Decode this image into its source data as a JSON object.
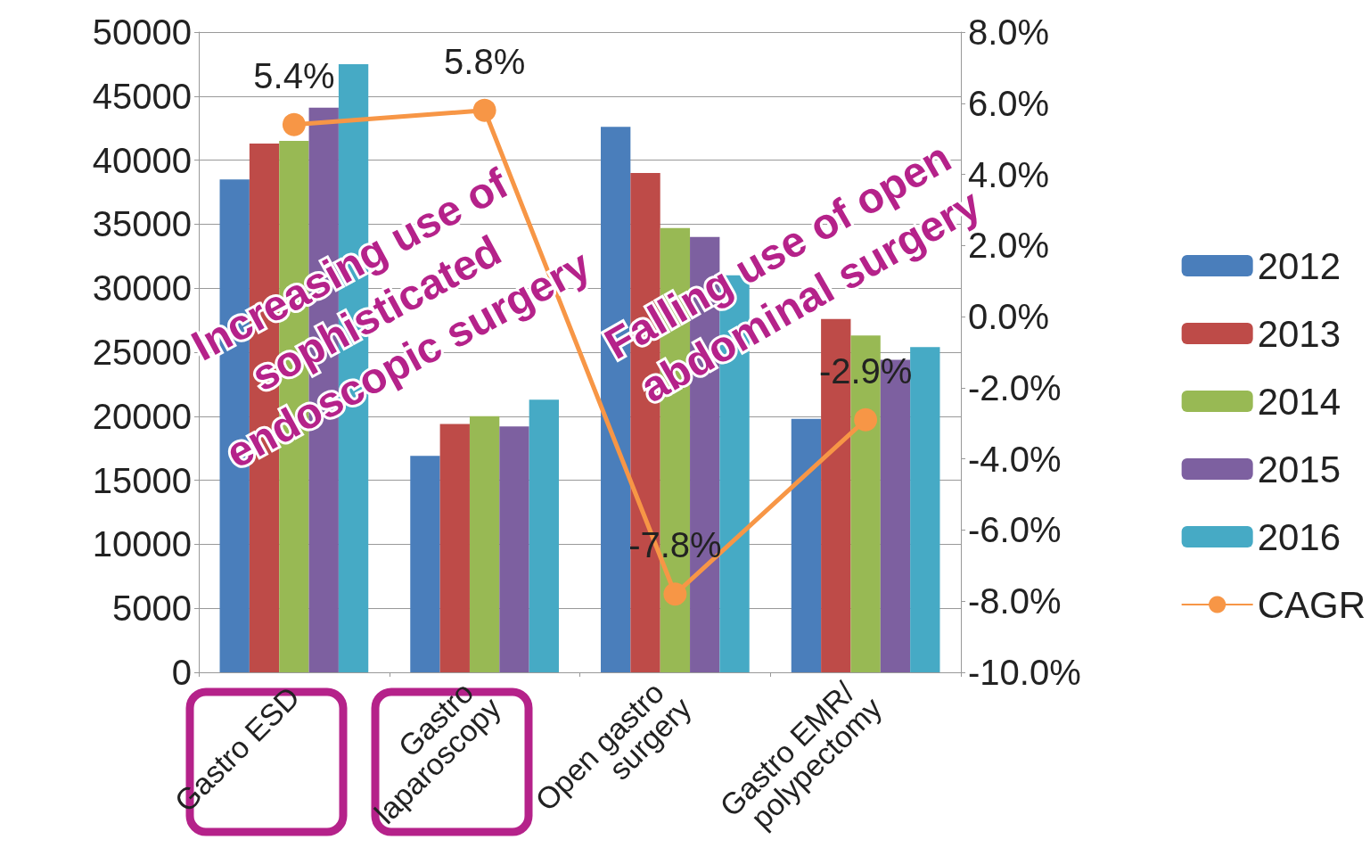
{
  "chart_data": {
    "type": "bar",
    "categories": [
      "Gastro ESD",
      "Gastro laparoscopy",
      "Open gastro surgery",
      "Gastro EMR/ polypectomy"
    ],
    "series": [
      {
        "name": "2012",
        "color": "#4a7ebb",
        "values": [
          38500,
          16900,
          42600,
          19800
        ]
      },
      {
        "name": "2013",
        "color": "#be4b48",
        "values": [
          41300,
          19400,
          39000,
          27600
        ]
      },
      {
        "name": "2014",
        "color": "#98b954",
        "values": [
          41500,
          20000,
          34700,
          26300
        ]
      },
      {
        "name": "2015",
        "color": "#7d60a0",
        "values": [
          44100,
          19200,
          34000,
          24400
        ]
      },
      {
        "name": "2016",
        "color": "#46aac5",
        "values": [
          47500,
          21300,
          31000,
          25400
        ]
      },
      {
        "name": "CAGR",
        "type": "line",
        "axis": "y2",
        "color": "#f79646",
        "marker": "circle",
        "values": [
          5.4,
          5.8,
          -7.8,
          -2.9
        ],
        "value_labels": [
          "5.4%",
          "5.8%",
          "-7.8%",
          "-2.9%"
        ]
      }
    ],
    "ylim": [
      0,
      50000
    ],
    "yticks": [
      0,
      5000,
      10000,
      15000,
      20000,
      25000,
      30000,
      35000,
      40000,
      45000,
      50000
    ],
    "y2lim": [
      -10,
      8
    ],
    "y2ticks": [
      {
        "value": -10,
        "label": "-10.0%"
      },
      {
        "value": -8,
        "label": "-8.0%"
      },
      {
        "value": -6,
        "label": "-6.0%"
      },
      {
        "value": -4,
        "label": "-4.0%"
      },
      {
        "value": -2,
        "label": "-2.0%"
      },
      {
        "value": 0,
        "label": "0.0%"
      },
      {
        "value": 2,
        "label": "2.0%"
      },
      {
        "value": 4,
        "label": "4.0%"
      },
      {
        "value": 6,
        "label": "6.0%"
      },
      {
        "value": 8,
        "label": "8.0%"
      }
    ],
    "grid": "y",
    "legend": "right",
    "annotations": [
      "Increasing use of sophisticated endoscopic surgery",
      "Falling use of open abdominal surgery"
    ]
  }
}
